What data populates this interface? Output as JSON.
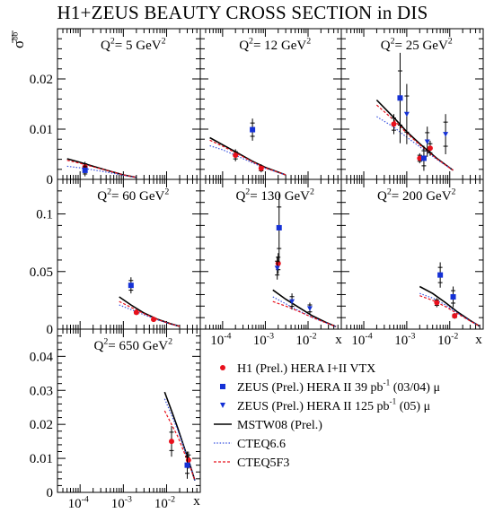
{
  "title": "H1+ZEUS BEAUTY CROSS SECTION in DIS",
  "y_axis_label": "σ",
  "y_axis_superscript": "bb",
  "x_axis_label": "x",
  "chart_data": [
    {
      "type": "scatter",
      "q2_value": "5",
      "label_q2": "Q",
      "label_q2_superscript": "2",
      "label_eq": "= ",
      "label_unit": " GeV",
      "label_unit_superscript": "2",
      "xlog": true,
      "xlim": [
        3e-05,
        0.06
      ],
      "ylim": [
        0,
        0.03
      ],
      "y_ticks": [
        "0",
        "0.01",
        "0.02"
      ],
      "series": [
        {
          "name": "H1 (Prel.) HERA I+II  VTX",
          "marker": "circle",
          "color": "#e8101c",
          "x": [
            0.00013
          ],
          "y": [
            0.0025
          ],
          "err": [
            0.001
          ]
        },
        {
          "name": "ZEUS (Prel.) HERA II 39 pb-1 (03/04) μ",
          "marker": "square",
          "color": "#1531d6",
          "x": [
            0.00013
          ],
          "y": [
            0.0018
          ],
          "err": [
            0.0012
          ]
        }
      ],
      "curves": [
        {
          "name": "MSTW08 (Prel.)",
          "color": "#000000",
          "x": [
            5e-05,
            0.0001,
            0.0002,
            0.0005,
            0.001,
            0.002
          ],
          "y": [
            0.0041,
            0.0034,
            0.0026,
            0.0016,
            0.0009,
            0.0004
          ]
        },
        {
          "name": "CTEQ6.6",
          "color": "#3b55e0",
          "x": [
            5e-05,
            0.0001,
            0.0002,
            0.0005,
            0.001,
            0.002
          ],
          "y": [
            0.0026,
            0.0023,
            0.0019,
            0.0013,
            0.0008,
            0.0004
          ]
        },
        {
          "name": "CTEQ5F3",
          "color": "#e8101c",
          "x": [
            5e-05,
            0.0001,
            0.0002,
            0.0005,
            0.001,
            0.002
          ],
          "y": [
            0.0038,
            0.0032,
            0.0025,
            0.0016,
            0.0009,
            0.0004
          ]
        }
      ]
    },
    {
      "type": "scatter",
      "q2_value": "12",
      "label_q2": "Q",
      "label_q2_superscript": "2",
      "label_eq": "= ",
      "label_unit": " GeV",
      "label_unit_superscript": "2",
      "xlog": true,
      "xlim": [
        3e-05,
        0.06
      ],
      "ylim": [
        0,
        0.03
      ],
      "y_ticks": [],
      "series": [
        {
          "name": "H1 (Prel.) HERA I+II  VTX",
          "marker": "circle",
          "color": "#e8101c",
          "x": [
            0.0002,
            0.0008
          ],
          "y": [
            0.0048,
            0.0022
          ],
          "err": [
            0.0012,
            0.0008
          ]
        },
        {
          "name": "ZEUS (Prel.) HERA II 39 pb-1 (03/04) μ",
          "marker": "square",
          "color": "#1531d6",
          "x": [
            0.0005
          ],
          "y": [
            0.0099
          ],
          "err": [
            0.0022
          ]
        }
      ],
      "curves": [
        {
          "name": "MSTW08 (Prel.)",
          "color": "#000000",
          "x": [
            5e-05,
            0.0001,
            0.0002,
            0.0005,
            0.001,
            0.003
          ],
          "y": [
            0.0083,
            0.0069,
            0.0055,
            0.0036,
            0.0024,
            0.0009
          ]
        },
        {
          "name": "CTEQ6.6",
          "color": "#3b55e0",
          "x": [
            5e-05,
            0.0001,
            0.0002,
            0.0005,
            0.001,
            0.003
          ],
          "y": [
            0.0067,
            0.0059,
            0.0048,
            0.0033,
            0.0022,
            0.0009
          ]
        },
        {
          "name": "CTEQ5F3",
          "color": "#e8101c",
          "x": [
            5e-05,
            0.0001,
            0.0002,
            0.0005,
            0.001,
            0.003
          ],
          "y": [
            0.0078,
            0.0066,
            0.0053,
            0.0035,
            0.0023,
            0.0009
          ]
        }
      ]
    },
    {
      "type": "scatter",
      "q2_value": "25",
      "label_q2": "Q",
      "label_q2_superscript": "2",
      "label_eq": "= ",
      "label_unit": " GeV",
      "label_unit_superscript": "2",
      "xlog": true,
      "xlim": [
        3e-05,
        0.06
      ],
      "ylim": [
        0,
        0.03
      ],
      "y_ticks": [],
      "series": [
        {
          "name": "H1 (Prel.) HERA I+II  VTX",
          "marker": "circle",
          "color": "#e8101c",
          "x": [
            0.0005,
            0.002,
            0.0035
          ],
          "y": [
            0.011,
            0.0042,
            0.0062
          ],
          "err": [
            0.002,
            0.001,
            0.0015
          ]
        },
        {
          "name": "ZEUS (Prel.) HERA II 39 pb-1 (03/04) μ",
          "marker": "square",
          "color": "#1531d6",
          "x": [
            0.0007,
            0.0025
          ],
          "y": [
            0.0162,
            0.0042
          ],
          "err": [
            0.009,
            0.0025
          ]
        },
        {
          "name": "ZEUS (Prel.) HERA II 125 pb-1 (05) μ",
          "marker": "triangle",
          "color": "#1531d6",
          "x": [
            0.001,
            0.003,
            0.008
          ],
          "y": [
            0.013,
            0.0075,
            0.009
          ],
          "err": [
            0.006,
            0.003,
            0.004
          ]
        }
      ],
      "curves": [
        {
          "name": "MSTW08 (Prel.)",
          "color": "#000000",
          "x": [
            0.0002,
            0.0005,
            0.001,
            0.002,
            0.005,
            0.012
          ],
          "y": [
            0.0158,
            0.0123,
            0.0095,
            0.0071,
            0.0042,
            0.0018
          ]
        },
        {
          "name": "CTEQ6.6",
          "color": "#3b55e0",
          "x": [
            0.0002,
            0.0005,
            0.001,
            0.002,
            0.005,
            0.012
          ],
          "y": [
            0.0125,
            0.0104,
            0.0084,
            0.0065,
            0.004,
            0.0018
          ]
        },
        {
          "name": "CTEQ5F3",
          "color": "#e8101c",
          "x": [
            0.0002,
            0.0005,
            0.001,
            0.002,
            0.005,
            0.012
          ],
          "y": [
            0.0148,
            0.0118,
            0.0092,
            0.0069,
            0.0041,
            0.0018
          ]
        }
      ]
    },
    {
      "type": "scatter",
      "q2_value": "60",
      "label_q2": "Q",
      "label_q2_superscript": "2",
      "label_eq": "= ",
      "label_unit": " GeV",
      "label_unit_superscript": "2",
      "xlog": true,
      "xlim": [
        3e-05,
        0.06
      ],
      "ylim": [
        0,
        0.13
      ],
      "y_ticks": [
        "0",
        "0.05",
        "0.1"
      ],
      "series": [
        {
          "name": "H1 (Prel.) HERA I+II  VTX",
          "marker": "circle",
          "color": "#e8101c",
          "x": [
            0.002,
            0.005
          ],
          "y": [
            0.0145,
            0.0085
          ],
          "err": [
            0.002,
            0.0015
          ]
        },
        {
          "name": "ZEUS (Prel.) HERA II 39 pb-1 (03/04) μ",
          "marker": "square",
          "color": "#1531d6",
          "x": [
            0.0015
          ],
          "y": [
            0.038
          ],
          "err": [
            0.007
          ]
        }
      ],
      "curves": [
        {
          "name": "MSTW08 (Prel.)",
          "color": "#000000",
          "x": [
            0.0008,
            0.0015,
            0.003,
            0.006,
            0.012,
            0.02
          ],
          "y": [
            0.028,
            0.021,
            0.014,
            0.0088,
            0.0048,
            0.0025
          ]
        },
        {
          "name": "CTEQ6.6",
          "color": "#3b55e0",
          "x": [
            0.0008,
            0.0015,
            0.003,
            0.006,
            0.012,
            0.02
          ],
          "y": [
            0.021,
            0.017,
            0.0125,
            0.0082,
            0.0046,
            0.0025
          ]
        },
        {
          "name": "CTEQ5F3",
          "color": "#e8101c",
          "x": [
            0.0008,
            0.0015,
            0.003,
            0.006,
            0.012,
            0.02
          ],
          "y": [
            0.024,
            0.019,
            0.0135,
            0.0086,
            0.0047,
            0.0025
          ]
        }
      ]
    },
    {
      "type": "scatter",
      "q2_value": "130",
      "label_q2": "Q",
      "label_q2_superscript": "2",
      "label_eq": "= ",
      "label_unit": " GeV",
      "label_unit_superscript": "2",
      "xlog": true,
      "xlim": [
        3e-05,
        0.06
      ],
      "ylim": [
        0,
        0.13
      ],
      "y_ticks": [],
      "x_ticks": [
        {
          "base": "10",
          "exp": "-4",
          "x": 0.0001
        },
        {
          "base": "10",
          "exp": "-3",
          "x": 0.001
        },
        {
          "base": "10",
          "exp": "-2",
          "x": 0.01
        }
      ],
      "series": [
        {
          "name": "H1 (Prel.) HERA I+II  VTX",
          "marker": "circle",
          "color": "#e8101c",
          "x": [
            0.002
          ],
          "y": [
            0.057
          ],
          "err": [
            0.009
          ]
        },
        {
          "name": "ZEUS (Prel.) HERA II 39 pb-1 (03/04) μ",
          "marker": "square",
          "color": "#1531d6",
          "x": [
            0.0021
          ],
          "y": [
            0.088
          ],
          "err": [
            0.03
          ]
        },
        {
          "name": "ZEUS (Prel.) HERA II 125 pb-1 (05) μ",
          "marker": "triangle",
          "color": "#1531d6",
          "x": [
            0.0019,
            0.0042,
            0.011
          ],
          "y": [
            0.053,
            0.024,
            0.018
          ],
          "err": [
            0.01,
            0.007,
            0.005
          ]
        }
      ],
      "curves": [
        {
          "name": "MSTW08 (Prel.)",
          "color": "#000000",
          "x": [
            0.0015,
            0.003,
            0.006,
            0.012,
            0.025,
            0.045
          ],
          "y": [
            0.034,
            0.026,
            0.019,
            0.012,
            0.0062,
            0.0022
          ]
        },
        {
          "name": "CTEQ6.6",
          "color": "#3b55e0",
          "x": [
            0.0015,
            0.003,
            0.006,
            0.012,
            0.025,
            0.045
          ],
          "y": [
            0.028,
            0.022,
            0.016,
            0.0105,
            0.0057,
            0.0022
          ]
        },
        {
          "name": "CTEQ5F3",
          "color": "#e8101c",
          "x": [
            0.0015,
            0.003,
            0.006,
            0.012,
            0.025,
            0.045
          ],
          "y": [
            0.024,
            0.02,
            0.0155,
            0.0105,
            0.0058,
            0.0022
          ]
        }
      ]
    },
    {
      "type": "scatter",
      "q2_value": "200",
      "label_q2": "Q",
      "label_q2_superscript": "2",
      "label_eq": "= ",
      "label_unit": " GeV",
      "label_unit_superscript": "2",
      "xlog": true,
      "xlim": [
        3e-05,
        0.06
      ],
      "ylim": [
        0,
        0.13
      ],
      "y_ticks": [],
      "x_ticks": [
        {
          "base": "10",
          "exp": "-4",
          "x": 0.0001
        },
        {
          "base": "10",
          "exp": "-3",
          "x": 0.001
        },
        {
          "base": "10",
          "exp": "-2",
          "x": 0.01
        }
      ],
      "series": [
        {
          "name": "H1 (Prel.) HERA I+II  VTX",
          "marker": "circle",
          "color": "#e8101c",
          "x": [
            0.005,
            0.013
          ],
          "y": [
            0.023,
            0.0115
          ],
          "err": [
            0.004,
            0.0025
          ]
        },
        {
          "name": "ZEUS (Prel.) HERA II 39 pb-1 (03/04) μ",
          "marker": "square",
          "color": "#1531d6",
          "x": [
            0.006,
            0.012
          ],
          "y": [
            0.047,
            0.028
          ],
          "err": [
            0.011,
            0.009
          ]
        }
      ],
      "curves": [
        {
          "name": "MSTW08 (Prel.)",
          "color": "#000000",
          "x": [
            0.002,
            0.004,
            0.008,
            0.015,
            0.03,
            0.05
          ],
          "y": [
            0.037,
            0.031,
            0.023,
            0.015,
            0.0075,
            0.0025
          ]
        },
        {
          "name": "CTEQ6.6",
          "color": "#3b55e0",
          "x": [
            0.002,
            0.004,
            0.008,
            0.015,
            0.03,
            0.05
          ],
          "y": [
            0.031,
            0.027,
            0.021,
            0.014,
            0.0072,
            0.0025
          ]
        },
        {
          "name": "CTEQ5F3",
          "color": "#e8101c",
          "x": [
            0.002,
            0.004,
            0.008,
            0.015,
            0.03,
            0.05
          ],
          "y": [
            0.029,
            0.025,
            0.0195,
            0.0135,
            0.007,
            0.0025
          ]
        }
      ]
    },
    {
      "type": "scatter",
      "q2_value": "650",
      "label_q2": "Q",
      "label_q2_superscript": "2",
      "label_eq": "= ",
      "label_unit": " GeV",
      "label_unit_superscript": "2",
      "xlog": true,
      "xlim": [
        3e-05,
        0.06
      ],
      "ylim": [
        0,
        0.048
      ],
      "y_ticks": [
        "0",
        "0.01",
        "0.02",
        "0.03",
        "0.04"
      ],
      "x_ticks": [
        {
          "base": "10",
          "exp": "-4",
          "x": 0.0001
        },
        {
          "base": "10",
          "exp": "-3",
          "x": 0.001
        },
        {
          "base": "10",
          "exp": "-2",
          "x": 0.01
        }
      ],
      "series": [
        {
          "name": "H1 (Prel.) HERA I+II  VTX",
          "marker": "circle",
          "color": "#e8101c",
          "x": [
            0.013,
            0.032
          ],
          "y": [
            0.015,
            0.0095
          ],
          "err": [
            0.0045,
            0.0025
          ]
        },
        {
          "name": "ZEUS (Prel.) HERA II 39 pb-1 (03/04) μ",
          "marker": "square",
          "color": "#1531d6",
          "x": [
            0.03
          ],
          "y": [
            0.008
          ],
          "err": [
            0.004
          ]
        }
      ],
      "curves": [
        {
          "name": "MSTW08 (Prel.)",
          "color": "#000000",
          "x": [
            0.009,
            0.013,
            0.018,
            0.025,
            0.035,
            0.045
          ],
          "y": [
            0.0295,
            0.024,
            0.019,
            0.0135,
            0.008,
            0.0035
          ]
        },
        {
          "name": "CTEQ6.6",
          "color": "#3b55e0",
          "x": [
            0.009,
            0.013,
            0.018,
            0.025,
            0.035,
            0.045
          ],
          "y": [
            0.0275,
            0.0228,
            0.0183,
            0.0132,
            0.0079,
            0.0035
          ]
        },
        {
          "name": "CTEQ5F3",
          "color": "#e8101c",
          "x": [
            0.009,
            0.013,
            0.018,
            0.025,
            0.035,
            0.045
          ],
          "y": [
            0.024,
            0.02,
            0.0165,
            0.012,
            0.0075,
            0.0035
          ]
        }
      ]
    }
  ],
  "legend": {
    "placement": "bottom-right",
    "entries": [
      {
        "label": "H1 (Prel.) HERA I+II  VTX",
        "marker": "circle",
        "color": "#e8101c"
      },
      {
        "label": "ZEUS (Prel.) HERA II 39 pb",
        "sup": "-1",
        "suffix": " (03/04) μ",
        "marker": "square",
        "color": "#1531d6"
      },
      {
        "label": "ZEUS (Prel.) HERA II 125 pb",
        "sup": "-1",
        "suffix": " (05) μ",
        "marker": "triangle",
        "color": "#1531d6"
      },
      {
        "label": "MSTW08 (Prel.)",
        "line": "solid",
        "color": "#000000"
      },
      {
        "label": "CTEQ6.6",
        "line": "dotted",
        "color": "#3b55e0"
      },
      {
        "label": "CTEQ5F3",
        "line": "dashed",
        "color": "#e8101c"
      }
    ]
  }
}
